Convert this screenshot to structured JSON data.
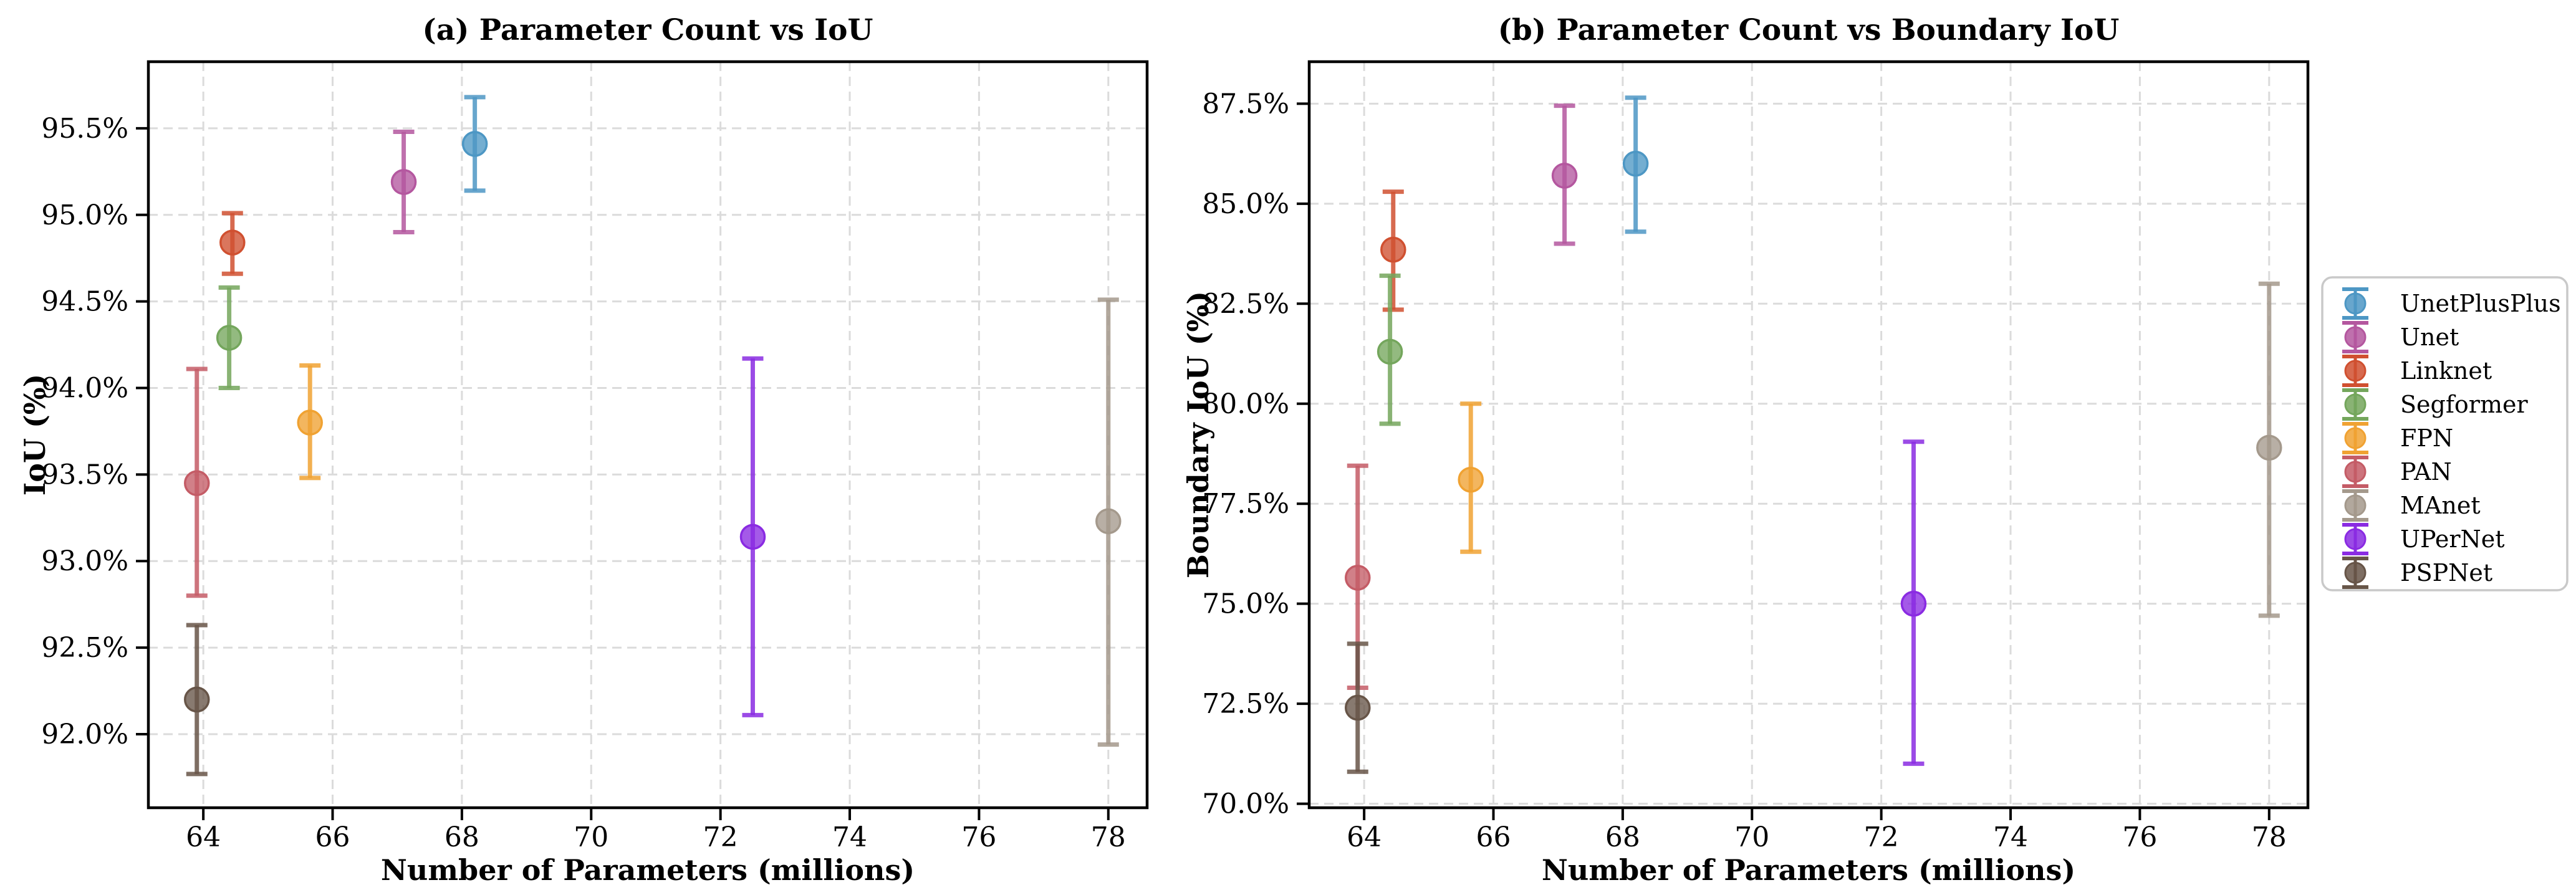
{
  "figure": {
    "background": "#ffffff"
  },
  "chart_data": [
    {
      "type": "scatter",
      "panel": "a",
      "title": "(a) Parameter Count vs IoU",
      "xlabel": "Number of Parameters (millions)",
      "ylabel": "IoU (%)",
      "xlim": [
        63.15,
        78.6
      ],
      "ylim": [
        91.575,
        95.885
      ],
      "x_ticks": [
        64,
        66,
        68,
        70,
        72,
        74,
        76,
        78
      ],
      "x_tick_labels": [
        "64",
        "66",
        "68",
        "70",
        "72",
        "74",
        "76",
        "78"
      ],
      "y_ticks": [
        92.0,
        92.5,
        93.0,
        93.5,
        94.0,
        94.5,
        95.0,
        95.5
      ],
      "y_tick_labels": [
        "92.0%",
        "92.5%",
        "93.0%",
        "93.5%",
        "94.0%",
        "94.5%",
        "95.0%",
        "95.5%"
      ],
      "grid": true,
      "series": [
        {
          "name": "UnetPlusPlus",
          "color": "#4D97C4",
          "x": 68.2,
          "y": 95.41,
          "y_low": 95.14,
          "y_high": 95.68
        },
        {
          "name": "Unet",
          "color": "#B4579F",
          "x": 67.1,
          "y": 95.19,
          "y_low": 94.9,
          "y_high": 95.48
        },
        {
          "name": "Linknet",
          "color": "#D05030",
          "x": 64.45,
          "y": 94.84,
          "y_low": 94.66,
          "y_high": 95.01
        },
        {
          "name": "Segformer",
          "color": "#74A65C",
          "x": 64.4,
          "y": 94.29,
          "y_low": 94.0,
          "y_high": 94.58
        },
        {
          "name": "FPN",
          "color": "#F0A232",
          "x": 65.65,
          "y": 93.8,
          "y_low": 93.48,
          "y_high": 94.13
        },
        {
          "name": "PAN",
          "color": "#C45C66",
          "x": 63.9,
          "y": 93.45,
          "y_low": 92.8,
          "y_high": 94.11
        },
        {
          "name": "MAnet",
          "color": "#A4998C",
          "x": 78.0,
          "y": 93.23,
          "y_low": 91.94,
          "y_high": 94.51
        },
        {
          "name": "UPerNet",
          "color": "#8A2BE2",
          "x": 72.5,
          "y": 93.14,
          "y_low": 92.11,
          "y_high": 94.17
        },
        {
          "name": "PSPNet",
          "color": "#675548",
          "x": 63.9,
          "y": 92.2,
          "y_low": 91.77,
          "y_high": 92.63
        }
      ]
    },
    {
      "type": "scatter",
      "panel": "b",
      "title": "(b) Parameter Count vs Boundary IoU",
      "xlabel": "Number of Parameters (millions)",
      "ylabel": "Boundary IoU (%)",
      "xlim": [
        63.15,
        78.6
      ],
      "ylim": [
        69.9,
        88.55
      ],
      "x_ticks": [
        64,
        66,
        68,
        70,
        72,
        74,
        76,
        78
      ],
      "x_tick_labels": [
        "64",
        "66",
        "68",
        "70",
        "72",
        "74",
        "76",
        "78"
      ],
      "y_ticks": [
        70.0,
        72.5,
        75.0,
        77.5,
        80.0,
        82.5,
        85.0,
        87.5
      ],
      "y_tick_labels": [
        "70.0%",
        "72.5%",
        "75.0%",
        "77.5%",
        "80.0%",
        "82.5%",
        "85.0%",
        "87.5%"
      ],
      "grid": true,
      "series": [
        {
          "name": "UnetPlusPlus",
          "color": "#4D97C4",
          "x": 68.2,
          "y": 86.0,
          "y_low": 84.3,
          "y_high": 87.65
        },
        {
          "name": "Unet",
          "color": "#B4579F",
          "x": 67.1,
          "y": 85.7,
          "y_low": 84.0,
          "y_high": 87.45
        },
        {
          "name": "Linknet",
          "color": "#D05030",
          "x": 64.45,
          "y": 83.85,
          "y_low": 82.35,
          "y_high": 85.3
        },
        {
          "name": "Segformer",
          "color": "#74A65C",
          "x": 64.4,
          "y": 81.3,
          "y_low": 79.5,
          "y_high": 83.2
        },
        {
          "name": "FPN",
          "color": "#F0A232",
          "x": 65.65,
          "y": 78.1,
          "y_low": 76.3,
          "y_high": 80.0
        },
        {
          "name": "PAN",
          "color": "#C45C66",
          "x": 63.9,
          "y": 75.65,
          "y_low": 72.9,
          "y_high": 78.45
        },
        {
          "name": "MAnet",
          "color": "#A4998C",
          "x": 78.0,
          "y": 78.9,
          "y_low": 74.7,
          "y_high": 83.0
        },
        {
          "name": "UPerNet",
          "color": "#8A2BE2",
          "x": 72.5,
          "y": 75.0,
          "y_low": 71.0,
          "y_high": 79.05
        },
        {
          "name": "PSPNet",
          "color": "#675548",
          "x": 63.9,
          "y": 72.4,
          "y_low": 70.8,
          "y_high": 74.0
        }
      ]
    }
  ],
  "legend": {
    "position": "right-outside",
    "items": [
      {
        "label": "UnetPlusPlus",
        "color": "#4D97C4"
      },
      {
        "label": "Unet",
        "color": "#B4579F"
      },
      {
        "label": "Linknet",
        "color": "#D05030"
      },
      {
        "label": "Segformer",
        "color": "#74A65C"
      },
      {
        "label": "FPN",
        "color": "#F0A232"
      },
      {
        "label": "PAN",
        "color": "#C45C66"
      },
      {
        "label": "MAnet",
        "color": "#A4998C"
      },
      {
        "label": "UPerNet",
        "color": "#8A2BE2"
      },
      {
        "label": "PSPNet",
        "color": "#675548"
      }
    ]
  }
}
